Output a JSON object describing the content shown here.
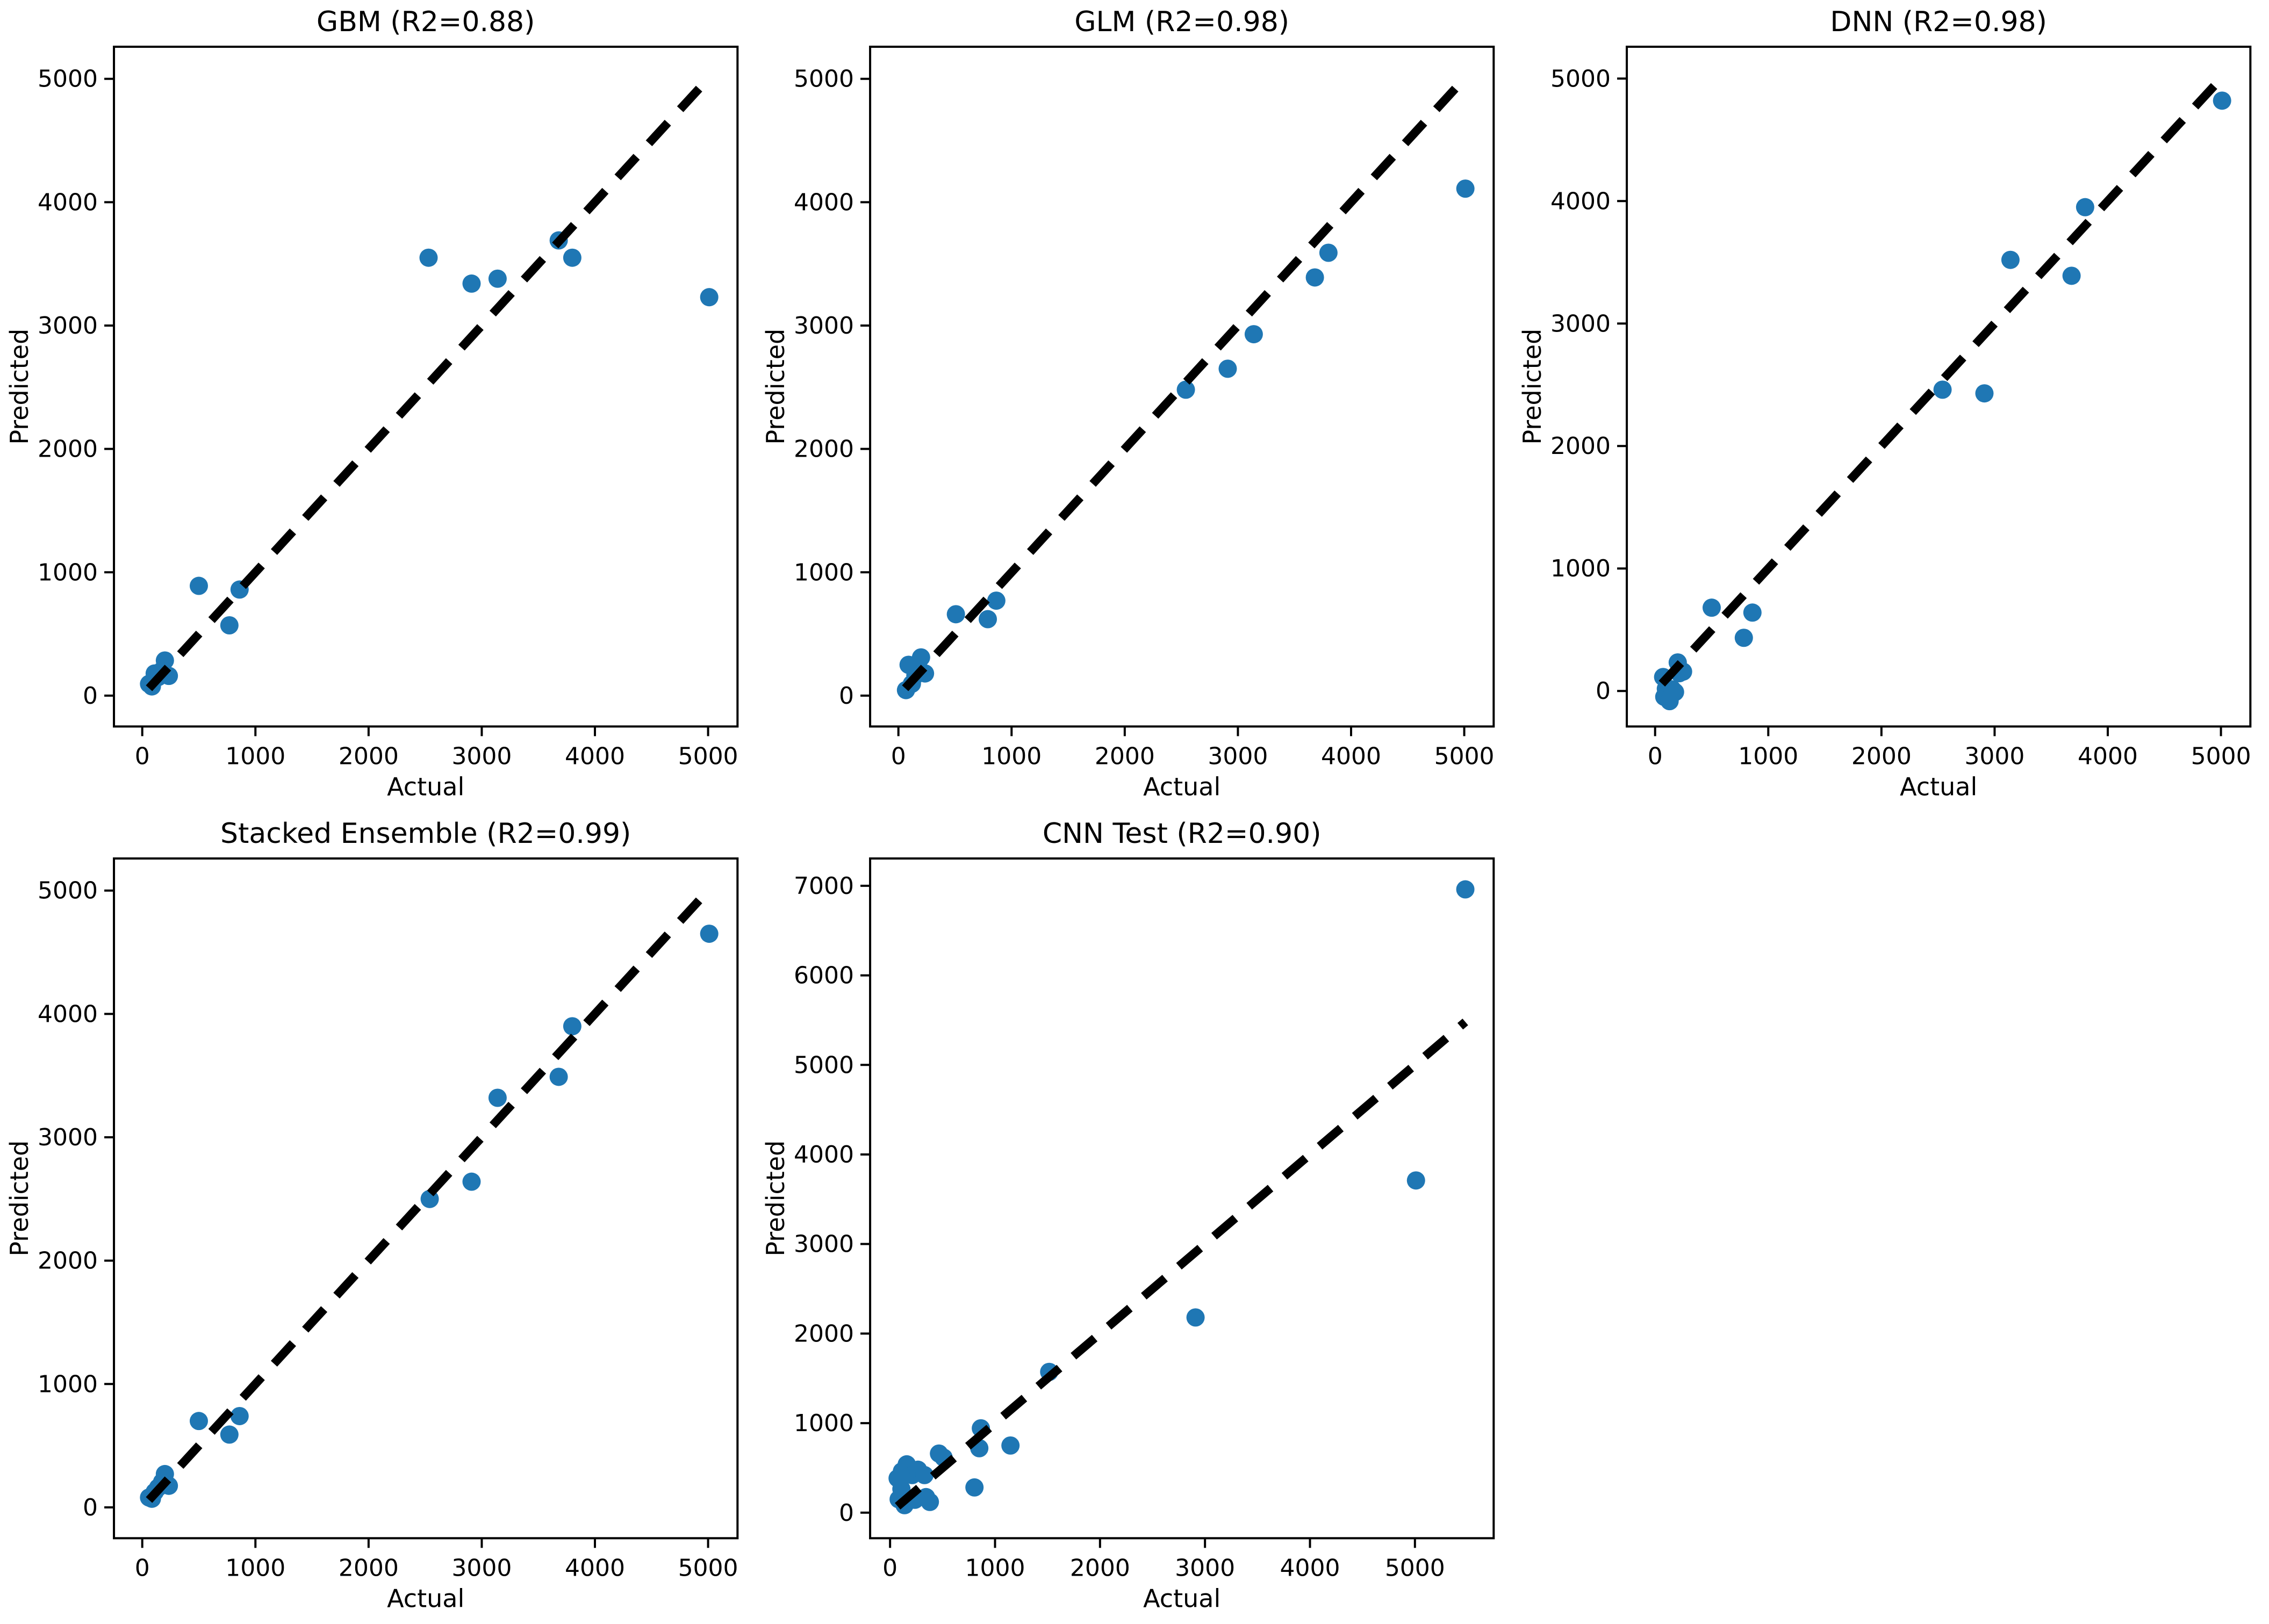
{
  "figure": {
    "background": "#ffffff",
    "rows": 2,
    "cols": 3,
    "marker_color": "#1f77b4",
    "line_color": "#000000",
    "text_color": "#000000",
    "grid": false,
    "legend": null
  },
  "chart_data": [
    {
      "type": "scatter",
      "title": "GBM (R2=0.88)",
      "r2": 0.88,
      "xlabel": "Actual",
      "ylabel": "Predicted",
      "xlim": [
        -250,
        5260
      ],
      "ylim": [
        -250,
        5260
      ],
      "xticks": [
        0,
        1000,
        2000,
        3000,
        4000,
        5000
      ],
      "yticks": [
        0,
        1000,
        2000,
        3000,
        4000,
        5000
      ],
      "identity_line": {
        "x1": 60,
        "y1": 60,
        "x2": 5010,
        "y2": 5010,
        "style": "dashed",
        "color": "#000000"
      },
      "marker_color": "#1f77b4",
      "points": [
        [
          60,
          95
        ],
        [
          85,
          75
        ],
        [
          110,
          180
        ],
        [
          140,
          150
        ],
        [
          175,
          205
        ],
        [
          200,
          285
        ],
        [
          235,
          160
        ],
        [
          500,
          890
        ],
        [
          770,
          570
        ],
        [
          860,
          860
        ],
        [
          2530,
          3550
        ],
        [
          2910,
          3340
        ],
        [
          3140,
          3380
        ],
        [
          3680,
          3690
        ],
        [
          3800,
          3550
        ],
        [
          5010,
          3230
        ]
      ]
    },
    {
      "type": "scatter",
      "title": "GLM (R2=0.98)",
      "r2": 0.98,
      "xlabel": "Actual",
      "ylabel": "Predicted",
      "xlim": [
        -250,
        5260
      ],
      "ylim": [
        -250,
        5260
      ],
      "xticks": [
        0,
        1000,
        2000,
        3000,
        4000,
        5000
      ],
      "yticks": [
        0,
        1000,
        2000,
        3000,
        4000,
        5000
      ],
      "identity_line": {
        "x1": 60,
        "y1": 60,
        "x2": 5010,
        "y2": 5010,
        "style": "dashed",
        "color": "#000000"
      },
      "marker_color": "#1f77b4",
      "points": [
        [
          67,
          45
        ],
        [
          90,
          250
        ],
        [
          119,
          96
        ],
        [
          150,
          165
        ],
        [
          185,
          215
        ],
        [
          200,
          310
        ],
        [
          235,
          180
        ],
        [
          508,
          660
        ],
        [
          790,
          620
        ],
        [
          865,
          770
        ],
        [
          2540,
          2480
        ],
        [
          2910,
          2650
        ],
        [
          3140,
          2930
        ],
        [
          3680,
          3390
        ],
        [
          3800,
          3590
        ],
        [
          5010,
          4110
        ]
      ]
    },
    {
      "type": "scatter",
      "title": "DNN (R2=0.98)",
      "r2": 0.98,
      "xlabel": "Actual",
      "ylabel": "Predicted",
      "xlim": [
        -250,
        5260
      ],
      "ylim": [
        -290,
        5260
      ],
      "xticks": [
        0,
        1000,
        2000,
        3000,
        4000,
        5000
      ],
      "yticks": [
        0,
        1000,
        2000,
        3000,
        4000,
        5000
      ],
      "identity_line": {
        "x1": 60,
        "y1": 60,
        "x2": 5010,
        "y2": 5010,
        "style": "dashed",
        "color": "#000000"
      },
      "marker_color": "#1f77b4",
      "points": [
        [
          71,
          114
        ],
        [
          81,
          -48
        ],
        [
          95,
          18
        ],
        [
          128,
          -83
        ],
        [
          152,
          13
        ],
        [
          176,
          -9
        ],
        [
          200,
          233
        ],
        [
          214,
          145
        ],
        [
          247,
          158
        ],
        [
          500,
          680
        ],
        [
          784,
          434
        ],
        [
          860,
          640
        ],
        [
          2540,
          2460
        ],
        [
          2910,
          2430
        ],
        [
          3140,
          3520
        ],
        [
          3680,
          3390
        ],
        [
          3800,
          3950
        ],
        [
          5010,
          4820
        ]
      ]
    },
    {
      "type": "scatter",
      "title": "Stacked Ensemble (R2=0.99)",
      "r2": 0.99,
      "xlabel": "Actual",
      "ylabel": "Predicted",
      "xlim": [
        -250,
        5260
      ],
      "ylim": [
        -250,
        5260
      ],
      "xticks": [
        0,
        1000,
        2000,
        3000,
        4000,
        5000
      ],
      "yticks": [
        0,
        1000,
        2000,
        3000,
        4000,
        5000
      ],
      "identity_line": {
        "x1": 60,
        "y1": 60,
        "x2": 5010,
        "y2": 5010,
        "style": "dashed",
        "color": "#000000"
      },
      "marker_color": "#1f77b4",
      "points": [
        [
          60,
          80
        ],
        [
          85,
          70
        ],
        [
          110,
          125
        ],
        [
          140,
          160
        ],
        [
          175,
          205
        ],
        [
          200,
          270
        ],
        [
          235,
          175
        ],
        [
          500,
          700
        ],
        [
          770,
          590
        ],
        [
          860,
          740
        ],
        [
          2540,
          2500
        ],
        [
          2910,
          2640
        ],
        [
          3140,
          3320
        ],
        [
          3680,
          3490
        ],
        [
          3800,
          3900
        ],
        [
          5010,
          4650
        ]
      ]
    },
    {
      "type": "scatter",
      "title": "CNN Test (R2=0.90)",
      "r2": 0.9,
      "xlabel": "Actual",
      "ylabel": "Predicted",
      "xlim": [
        -190,
        5750
      ],
      "ylim": [
        -285,
        7305
      ],
      "xticks": [
        0,
        1000,
        2000,
        3000,
        4000,
        5000
      ],
      "yticks": [
        0,
        1000,
        2000,
        3000,
        4000,
        5000,
        6000,
        7000
      ],
      "identity_line": {
        "x1": 72,
        "y1": 72,
        "x2": 5480,
        "y2": 5480,
        "style": "dashed",
        "color": "#000000"
      },
      "marker_color": "#1f77b4",
      "points": [
        [
          72,
          384
        ],
        [
          82,
          150
        ],
        [
          108,
          264
        ],
        [
          113,
          462
        ],
        [
          138,
          84
        ],
        [
          159,
          540
        ],
        [
          210,
          420
        ],
        [
          236,
          144
        ],
        [
          266,
          480
        ],
        [
          328,
          420
        ],
        [
          343,
          174
        ],
        [
          379,
          120
        ],
        [
          466,
          660
        ],
        [
          510,
          615
        ],
        [
          804,
          282
        ],
        [
          850,
          720
        ],
        [
          865,
          942
        ],
        [
          1147,
          750
        ],
        [
          1516,
          1572
        ],
        [
          2910,
          2180
        ],
        [
          5010,
          3710
        ],
        [
          5480,
          6960
        ]
      ]
    }
  ]
}
